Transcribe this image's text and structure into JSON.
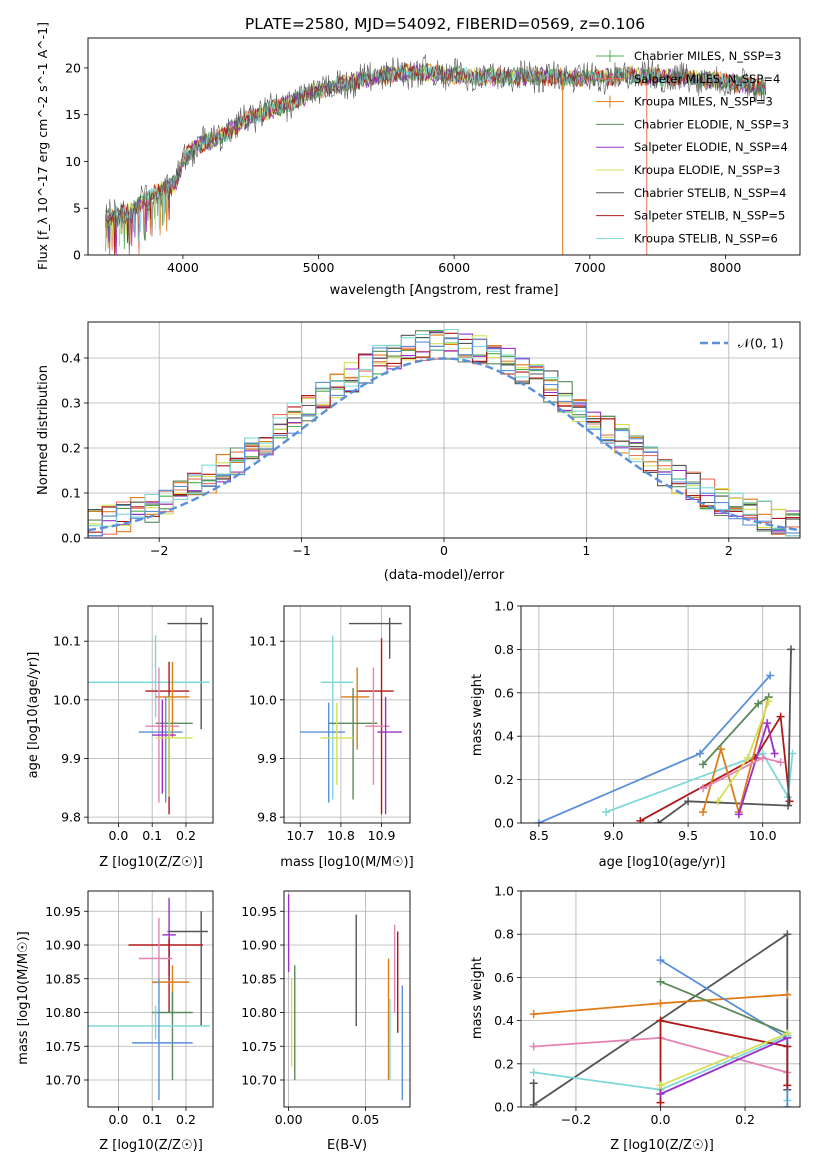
{
  "figure": {
    "title": "PLATE=2580, MJD=54092, FIBERID=0569, z=0.106"
  },
  "colors": {
    "chabrier_miles": "#4caf50",
    "salpeter_miles": "#e8735a",
    "kroupa_miles": "#e07b1a",
    "chabrier_elodie": "#5a8a5a",
    "salpeter_elodie": "#9b30c8",
    "kroupa_elodie": "#d4e05a",
    "chabrier_stelib": "#555555",
    "salpeter_stelib": "#b01818",
    "kroupa_stelib": "#7fd8d8",
    "normal": "#5b8fd9",
    "pink": "#e484b4"
  },
  "chart_data": [
    {
      "id": "spectrum",
      "type": "line",
      "xlabel": "wavelength [Angstrom, rest frame]",
      "ylabel": "Flux [f_λ 10^-17 erg cm^-2 s^-1 A^-1]",
      "xlim": [
        3300,
        8550
      ],
      "ylim": [
        0,
        23.2
      ],
      "xticks": [
        4000,
        5000,
        6000,
        7000,
        8000
      ],
      "yticks": [
        0,
        5,
        10,
        15,
        20
      ],
      "grid": false,
      "legend_placement": "right",
      "series": [
        {
          "name": "Chabrier MILES, N_SSP=3",
          "color": "#4caf50",
          "marker": "|"
        },
        {
          "name": "Salpeter MILES, N_SSP=4",
          "color": "#e8735a",
          "marker": "|"
        },
        {
          "name": "Kroupa MILES, N_SSP=3",
          "color": "#e07b1a",
          "marker": "|"
        },
        {
          "name": "Chabrier ELODIE, N_SSP=3",
          "color": "#5a8a5a",
          "marker": "-"
        },
        {
          "name": "Salpeter ELODIE, N_SSP=4",
          "color": "#9b30c8",
          "marker": "-"
        },
        {
          "name": "Kroupa ELODIE, N_SSP=3",
          "color": "#d4e05a",
          "marker": "-"
        },
        {
          "name": "Chabrier STELIB, N_SSP=4",
          "color": "#555555",
          "marker": "-"
        },
        {
          "name": "Salpeter STELIB, N_SSP=5",
          "color": "#b01818",
          "marker": "-"
        },
        {
          "name": "Kroupa STELIB, N_SSP=6",
          "color": "#7fd8d8",
          "marker": "-"
        }
      ],
      "continuum_x": [
        3430,
        3600,
        3800,
        3950,
        4000,
        4100,
        4250,
        4500,
        4750,
        5000,
        5250,
        5500,
        5750,
        6000,
        6250,
        6500,
        6750,
        7000,
        7250,
        7500,
        7750,
        8000,
        8300
      ],
      "continuum_y": [
        4.0,
        4.6,
        6.6,
        7.8,
        10.2,
        11.8,
        12.4,
        14.8,
        16.0,
        17.6,
        18.5,
        19.3,
        19.6,
        19.2,
        19.0,
        19.1,
        19.0,
        18.9,
        19.2,
        19.0,
        18.9,
        18.6,
        17.8
      ],
      "spike_drops": [
        {
          "x": 6800,
          "color": "#e07b1a"
        },
        {
          "x": 7420,
          "color": "#e8735a"
        }
      ]
    },
    {
      "id": "residual_histogram",
      "type": "histogram",
      "xlabel": "(data-model)/error",
      "ylabel": "Normed distribution",
      "xlim": [
        -2.5,
        2.5
      ],
      "ylim": [
        0,
        0.48
      ],
      "xticks": [
        -2,
        -1,
        0,
        1,
        2
      ],
      "yticks": [
        0.0,
        0.1,
        0.2,
        0.3,
        0.4
      ],
      "grid": true,
      "legend": [
        "𝒩(0, 1)"
      ],
      "legend_placement": "top-right",
      "bin_width": 0.1,
      "normal_curve": {
        "mean": 0,
        "sigma": 1,
        "color": "#5b8fd9",
        "style": "dashed"
      }
    },
    {
      "id": "age_vs_Z",
      "type": "errorbar",
      "xlabel": "Z [log10(Z/Z☉)]",
      "ylabel": "age [log10(age/yr)]",
      "xlim": [
        -0.09,
        0.28
      ],
      "ylim": [
        9.79,
        10.16
      ],
      "xticks": [
        0.0,
        0.1,
        0.2
      ],
      "yticks": [
        9.8,
        9.9,
        10.0,
        10.1
      ],
      "grid": true,
      "points": [
        {
          "x": 0.245,
          "xerr": [
            0.1,
            0.02
          ],
          "y": 10.13,
          "yerr": [
            0.18,
            0.01
          ],
          "color": "#555555"
        },
        {
          "x": 0.11,
          "xerr": [
            0.2,
            0.16
          ],
          "y": 10.03,
          "yerr": [
            0.06,
            0.08
          ],
          "color": "#7fd8d8"
        },
        {
          "x": 0.15,
          "xerr": [
            0.07,
            0.06
          ],
          "y": 10.015,
          "yerr": [
            0.21,
            0.05
          ],
          "color": "#b01818"
        },
        {
          "x": 0.16,
          "xerr": [
            0.05,
            0.05
          ],
          "y": 10.005,
          "yerr": [
            0.07,
            0.06
          ],
          "color": "#e07b1a"
        },
        {
          "x": 0.15,
          "xerr": [
            0.04,
            0.07
          ],
          "y": 9.96,
          "yerr": [
            0.12,
            0.05
          ],
          "color": "#5a8a5a"
        },
        {
          "x": 0.12,
          "xerr": [
            0.04,
            0.06
          ],
          "y": 9.955,
          "yerr": [
            0.13,
            0.1
          ],
          "color": "#e484b4"
        },
        {
          "x": 0.14,
          "xerr": [
            0.08,
            0.05
          ],
          "y": 9.945,
          "yerr": [
            0.12,
            0.06
          ],
          "color": "#5b8fd9"
        },
        {
          "x": 0.13,
          "xerr": [
            0.03,
            0.04
          ],
          "y": 9.94,
          "yerr": [
            0.1,
            0.06
          ],
          "color": "#9b30c8"
        },
        {
          "x": 0.15,
          "xerr": [
            0.04,
            0.07
          ],
          "y": 9.935,
          "yerr": [
            0.1,
            0.07
          ],
          "color": "#d4e05a"
        }
      ]
    },
    {
      "id": "age_vs_mass",
      "type": "errorbar",
      "xlabel": "mass [log10(M/M☉)]",
      "ylabel": "",
      "xlim": [
        10.66,
        10.97
      ],
      "ylim": [
        9.79,
        10.16
      ],
      "xticks": [
        10.7,
        10.8,
        10.9
      ],
      "yticks": [
        9.8,
        9.9,
        10.0,
        10.1
      ],
      "grid": true,
      "points": [
        {
          "x": 10.92,
          "xerr": [
            0.1,
            0.03
          ],
          "y": 10.13,
          "yerr": [
            0.06,
            0.01
          ],
          "color": "#555555"
        },
        {
          "x": 10.78,
          "xerr": [
            0.03,
            0.05
          ],
          "y": 10.03,
          "yerr": [
            0.2,
            0.08
          ],
          "color": "#7fd8d8"
        },
        {
          "x": 10.9,
          "xerr": [
            0.06,
            0.03
          ],
          "y": 10.015,
          "yerr": [
            0.21,
            0.09
          ],
          "color": "#b01818"
        },
        {
          "x": 10.84,
          "xerr": [
            0.04,
            0.03
          ],
          "y": 10.005,
          "yerr": [
            0.09,
            0.05
          ],
          "color": "#e07b1a"
        },
        {
          "x": 10.83,
          "xerr": [
            0.06,
            0.06
          ],
          "y": 9.96,
          "yerr": [
            0.13,
            0.06
          ],
          "color": "#5a8a5a"
        },
        {
          "x": 10.88,
          "xerr": [
            0.02,
            0.04
          ],
          "y": 9.955,
          "yerr": [
            0.1,
            0.1
          ],
          "color": "#e484b4"
        },
        {
          "x": 10.91,
          "xerr": [
            0.02,
            0.04
          ],
          "y": 9.945,
          "yerr": [
            0.14,
            0.06
          ],
          "color": "#9b30c8"
        },
        {
          "x": 10.77,
          "xerr": [
            0.07,
            0.04
          ],
          "y": 9.945,
          "yerr": [
            0.12,
            0.05
          ],
          "color": "#5b8fd9"
        },
        {
          "x": 10.79,
          "xerr": [
            0.04,
            0.04
          ],
          "y": 9.935,
          "yerr": [
            0.08,
            0.06
          ],
          "color": "#d4e05a"
        }
      ]
    },
    {
      "id": "massweight_vs_age",
      "type": "line",
      "xlabel": "age [log10(age/yr)]",
      "ylabel": "mass weight",
      "xlim": [
        8.38,
        10.25
      ],
      "ylim": [
        0,
        1.0
      ],
      "xticks": [
        8.5,
        9.0,
        9.5,
        10.0
      ],
      "yticks": [
        0.0,
        0.2,
        0.4,
        0.6,
        0.8,
        1.0
      ],
      "grid": true,
      "series": [
        {
          "color": "#5b8fd9",
          "x": [
            8.5,
            9.58,
            10.05
          ],
          "y": [
            0.0,
            0.32,
            0.68
          ]
        },
        {
          "color": "#7fd8d8",
          "x": [
            8.95,
            10.0,
            10.17,
            10.2
          ],
          "y": [
            0.05,
            0.32,
            0.12,
            0.32
          ]
        },
        {
          "color": "#b01818",
          "x": [
            9.18,
            9.95,
            10.12,
            10.18
          ],
          "y": [
            0.01,
            0.3,
            0.49,
            0.1
          ]
        },
        {
          "color": "#555555",
          "x": [
            9.3,
            9.5,
            10.17,
            10.19
          ],
          "y": [
            0.0,
            0.1,
            0.08,
            0.8
          ]
        },
        {
          "color": "#e07b1a",
          "x": [
            9.6,
            9.72,
            9.84,
            10.04
          ],
          "y": [
            0.05,
            0.34,
            0.05,
            0.58
          ]
        },
        {
          "color": "#5a8a5a",
          "x": [
            9.6,
            9.97,
            10.04
          ],
          "y": [
            0.27,
            0.55,
            0.58
          ]
        },
        {
          "color": "#9b30c8",
          "x": [
            9.84,
            10.03,
            10.08
          ],
          "y": [
            0.04,
            0.46,
            0.32
          ]
        },
        {
          "color": "#e484b4",
          "x": [
            9.6,
            10.0,
            10.12
          ],
          "y": [
            0.16,
            0.3,
            0.28
          ]
        },
        {
          "color": "#d4e05a",
          "x": [
            9.7,
            9.9,
            10.04
          ],
          "y": [
            0.1,
            0.3,
            0.56
          ]
        }
      ]
    },
    {
      "id": "mass_vs_Z",
      "type": "errorbar",
      "xlabel": "Z [log10(Z/Z☉)]",
      "ylabel": "mass [log10(M/M☉)]",
      "xlim": [
        -0.09,
        0.28
      ],
      "ylim": [
        10.66,
        10.98
      ],
      "xticks": [
        0.0,
        0.1,
        0.2
      ],
      "yticks": [
        10.7,
        10.75,
        10.8,
        10.85,
        10.9,
        10.95
      ],
      "grid": true,
      "points": [
        {
          "x": 0.245,
          "xerr": [
            0.1,
            0.02
          ],
          "y": 10.92,
          "yerr": [
            0.14,
            0.03
          ],
          "color": "#555555"
        },
        {
          "x": 0.15,
          "xerr": [
            0.02,
            0.02
          ],
          "y": 10.915,
          "yerr": [
            0.06,
            0.055
          ],
          "color": "#9b30c8"
        },
        {
          "x": 0.15,
          "xerr": [
            0.12,
            0.1
          ],
          "y": 10.9,
          "yerr": [
            0.1,
            0.01
          ],
          "color": "#b01818"
        },
        {
          "x": 0.12,
          "xerr": [
            0.06,
            0.04
          ],
          "y": 10.88,
          "yerr": [
            0.03,
            0.06
          ],
          "color": "#e484b4"
        },
        {
          "x": 0.16,
          "xerr": [
            0.06,
            0.05
          ],
          "y": 10.845,
          "yerr": [
            0.05,
            0.025
          ],
          "color": "#e07b1a"
        },
        {
          "x": 0.16,
          "xerr": [
            0.06,
            0.06
          ],
          "y": 10.8,
          "yerr": [
            0.1,
            0.03
          ],
          "color": "#5a8a5a"
        },
        {
          "x": 0.11,
          "xerr": [
            0.2,
            0.16
          ],
          "y": 10.78,
          "yerr": [
            0.02,
            0.03
          ],
          "color": "#7fd8d8"
        },
        {
          "x": 0.12,
          "xerr": [
            0.08,
            0.1
          ],
          "y": 10.755,
          "yerr": [
            0.085,
            0.095
          ],
          "color": "#5b8fd9"
        }
      ]
    },
    {
      "id": "mass_vs_EBV",
      "type": "errorbar",
      "xlabel": "E(B-V)",
      "ylabel": "",
      "xlim": [
        -0.003,
        0.079
      ],
      "ylim": [
        10.66,
        10.98
      ],
      "xticks": [
        0.0,
        0.05
      ],
      "yticks": [
        10.7,
        10.75,
        10.8,
        10.85,
        10.9,
        10.95
      ],
      "grid": true,
      "vertical_bars": [
        {
          "x": 0.0,
          "y": [
            10.86,
            10.975
          ],
          "color": "#9b30c8"
        },
        {
          "x": 0.002,
          "y": [
            10.72,
            10.85
          ],
          "color": "#d4e05a"
        },
        {
          "x": 0.004,
          "y": [
            10.7,
            10.87
          ],
          "color": "#5a8a5a"
        },
        {
          "x": 0.044,
          "y": [
            10.78,
            10.945
          ],
          "color": "#555555"
        },
        {
          "x": 0.065,
          "y": [
            10.7,
            10.88
          ],
          "color": "#e07b1a"
        },
        {
          "x": 0.066,
          "y": [
            10.7,
            10.82
          ],
          "color": "#7fd8d8"
        },
        {
          "x": 0.069,
          "y": [
            10.8,
            10.93
          ],
          "color": "#e484b4"
        },
        {
          "x": 0.071,
          "y": [
            10.77,
            10.92
          ],
          "color": "#b01818"
        },
        {
          "x": 0.074,
          "y": [
            10.67,
            10.84
          ],
          "color": "#5b8fd9"
        }
      ]
    },
    {
      "id": "massweight_vs_Z",
      "type": "line",
      "xlabel": "Z [log10(Z/Z☉)]",
      "ylabel": "mass weight",
      "xlim": [
        -0.33,
        0.33
      ],
      "ylim": [
        0,
        1.0
      ],
      "xticks": [
        -0.2,
        0.0,
        0.2
      ],
      "yticks": [
        0.0,
        0.2,
        0.4,
        0.6,
        0.8,
        1.0
      ],
      "grid": true,
      "series": [
        {
          "color": "#555555",
          "x": [
            -0.3,
            -0.3,
            0.3,
            0.3
          ],
          "y": [
            0.11,
            0.01,
            0.8,
            0.08
          ]
        },
        {
          "color": "#e07b1a",
          "x": [
            -0.3,
            0.0,
            0.3
          ],
          "y": [
            0.43,
            0.48,
            0.52
          ]
        },
        {
          "color": "#e484b4",
          "x": [
            -0.3,
            0.0,
            0.3
          ],
          "y": [
            0.28,
            0.32,
            0.16
          ]
        },
        {
          "color": "#7fd8d8",
          "x": [
            -0.3,
            0.0,
            0.3,
            0.3
          ],
          "y": [
            0.16,
            0.08,
            0.33,
            0.03
          ]
        },
        {
          "color": "#5b8fd9",
          "x": [
            0.0,
            0.3,
            0.3
          ],
          "y": [
            0.68,
            0.32,
            0.0
          ]
        },
        {
          "color": "#5a8a5a",
          "x": [
            0.0,
            0.3
          ],
          "y": [
            0.58,
            0.34
          ]
        },
        {
          "color": "#b01818",
          "x": [
            0.0,
            0.0,
            0.3,
            0.3
          ],
          "y": [
            0.02,
            0.4,
            0.28,
            0.1
          ]
        },
        {
          "color": "#9b30c8",
          "x": [
            0.0,
            0.3
          ],
          "y": [
            0.06,
            0.32
          ]
        },
        {
          "color": "#d4e05a",
          "x": [
            0.0,
            0.3
          ],
          "y": [
            0.1,
            0.34
          ]
        }
      ]
    }
  ]
}
